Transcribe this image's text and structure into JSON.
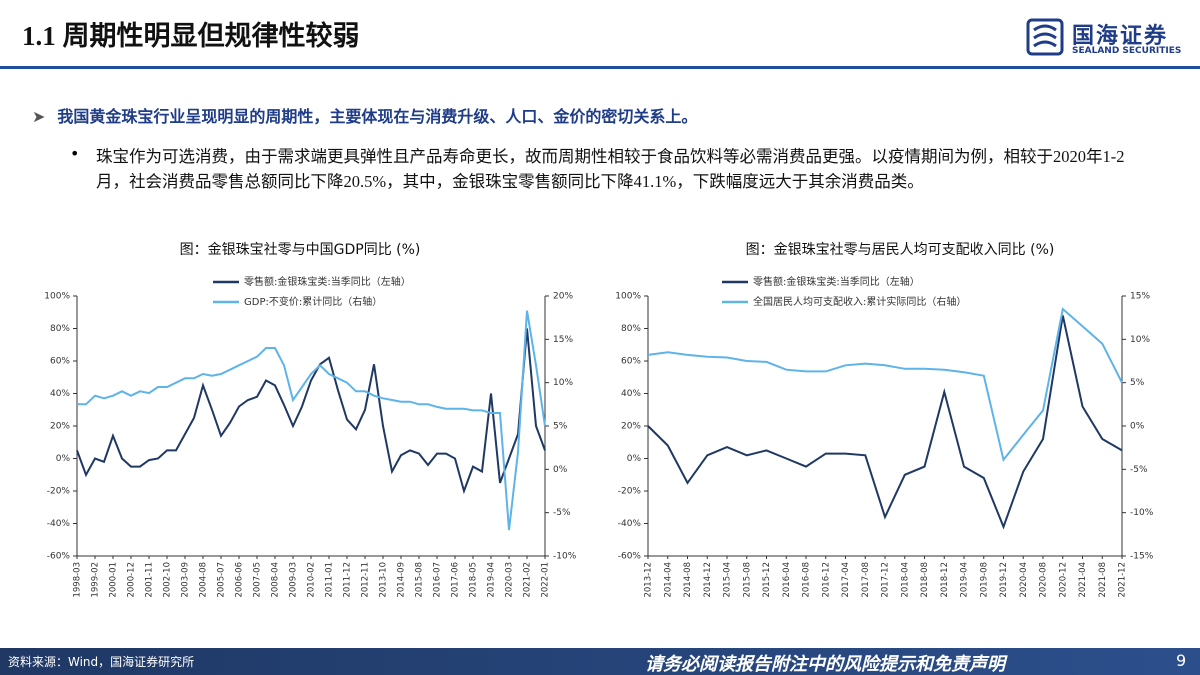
{
  "header": {
    "title": "1.1 周期性明显但规律性较弱",
    "logo": "国海证券",
    "logo_en": "SEALAND SECURITIES"
  },
  "body": {
    "point": "我国黄金珠宝行业呈现明显的周期性，主要体现在与消费升级、人口、金价的密切关系上。",
    "detail": "珠宝作为可选消费，由于需求端更具弹性且产品寿命更长，故而周期性相较于食品饮料等必需消费品更强。以疫情期间为例，相较于2020年1-2月，社会消费品零售总额同比下降20.5%，其中，金银珠宝零售额同比下降41.1%，下跌幅度远大于其余消费品类。"
  },
  "chart_data": [
    {
      "type": "line",
      "title": "图：金银珠宝社零与中国GDP同比 (%)",
      "categories": [
        "1998-03",
        null,
        "1999-02",
        null,
        "2000-01",
        null,
        "2000-12",
        null,
        "2001-11",
        null,
        "2002-10",
        null,
        "2003-09",
        null,
        "2004-08",
        null,
        "2005-07",
        null,
        "2006-06",
        null,
        "2007-05",
        null,
        "2008-04",
        null,
        "2009-03",
        null,
        "2010-02",
        null,
        "2011-01",
        null,
        "2011-12",
        null,
        "2012-11",
        null,
        "2013-10",
        null,
        "2014-09",
        null,
        "2015-08",
        null,
        "2016-07",
        null,
        "2017-06",
        null,
        "2018-05",
        null,
        "2019-04",
        null,
        "2020-03",
        null,
        "2021-02",
        null,
        "2022-01"
      ],
      "series": [
        {
          "name": "零售额:金银珠宝类:当季同比（左轴）",
          "color": "#1f3864",
          "values": [
            5,
            -10,
            0,
            -2,
            14,
            0,
            -5,
            -5,
            -1,
            0,
            5,
            5,
            15,
            25,
            45,
            30,
            14,
            22,
            32,
            36,
            38,
            48,
            45,
            33,
            20,
            32,
            48,
            58,
            62,
            42,
            24,
            18,
            30,
            58,
            20,
            -8,
            2,
            5,
            3,
            -4,
            3,
            3,
            0,
            -20,
            -5,
            -8,
            40,
            -15,
            0,
            15,
            80,
            20,
            5
          ]
        },
        {
          "name": "GDP:不变价:累计同比（右轴）",
          "color": "#5eb3e8",
          "axis": "y2",
          "values": [
            7.5,
            7.5,
            8.5,
            8.2,
            8.5,
            9,
            8.5,
            9,
            8.8,
            9.5,
            9.5,
            10,
            10.5,
            10.5,
            11,
            10.8,
            11,
            11.5,
            12,
            12.5,
            13,
            14,
            14,
            12,
            8,
            9.5,
            11,
            12,
            11,
            10.5,
            10,
            9,
            9,
            8.5,
            8.2,
            8,
            7.8,
            7.8,
            7.5,
            7.5,
            7.2,
            7,
            7,
            7,
            6.8,
            6.8,
            6.5,
            6.5,
            -7,
            2,
            18.3,
            12,
            5
          ]
        }
      ],
      "ylim": [
        -60,
        100
      ],
      "yticks": [
        {
          "value": -60,
          "label": "-60%"
        },
        {
          "value": -40,
          "label": "-40%"
        },
        {
          "value": -20,
          "label": "-20%"
        },
        {
          "value": 0,
          "label": "0%"
        },
        {
          "value": 20,
          "label": "20%"
        },
        {
          "value": 40,
          "label": "40%"
        },
        {
          "value": 60,
          "label": "60%"
        },
        {
          "value": 80,
          "label": "80%"
        },
        {
          "value": 100,
          "label": "100%"
        }
      ],
      "y2lim": [
        -10,
        20
      ],
      "y2ticks": [
        {
          "value": -10,
          "label": "-10%"
        },
        {
          "value": -5,
          "label": "-5%"
        },
        {
          "value": 0,
          "label": "0%"
        },
        {
          "value": 5,
          "label": "5%"
        },
        {
          "value": 10,
          "label": "10%"
        },
        {
          "value": 15,
          "label": "15%"
        },
        {
          "value": 20,
          "label": "20%"
        }
      ]
    },
    {
      "type": "line",
      "title": "图：金银珠宝社零与居民人均可支配收入同比 (%)",
      "categories": [
        "2013-12",
        "2014-04",
        "2014-08",
        "2014-12",
        "2015-04",
        "2015-08",
        "2015-12",
        "2016-04",
        "2016-08",
        "2016-12",
        "2017-04",
        "2017-08",
        "2017-12",
        "2018-04",
        "2018-08",
        "2018-12",
        "2019-04",
        "2019-08",
        "2019-12",
        "2020-04",
        "2020-08",
        "2020-12",
        "2021-04",
        "2021-08",
        "2021-12"
      ],
      "series": [
        {
          "name": "零售额:金银珠宝类:当季同比（左轴）",
          "color": "#1f3864",
          "values": [
            20,
            8,
            -15,
            2,
            7,
            2,
            5,
            0,
            -5,
            3,
            3,
            2,
            -36,
            -10,
            -5,
            41,
            -5,
            -12,
            -42,
            -8,
            12,
            88,
            32,
            12,
            5
          ]
        },
        {
          "name": "全国居民人均可支配收入:累计实际同比（右轴）",
          "color": "#5eb3e8",
          "axis": "y2",
          "values": [
            8.2,
            8.5,
            8.2,
            8,
            7.9,
            7.5,
            7.4,
            6.5,
            6.3,
            6.3,
            7,
            7.2,
            7,
            6.6,
            6.6,
            6.5,
            6.2,
            5.8,
            -3.9,
            -1,
            1.8,
            13.5,
            11.5,
            9.5,
            5
          ]
        }
      ],
      "ylim": [
        -60,
        100
      ],
      "yticks": [
        {
          "value": -60,
          "label": "-60%"
        },
        {
          "value": -40,
          "label": "-40%"
        },
        {
          "value": -20,
          "label": "-20%"
        },
        {
          "value": 0,
          "label": "0%"
        },
        {
          "value": 20,
          "label": "20%"
        },
        {
          "value": 40,
          "label": "40%"
        },
        {
          "value": 60,
          "label": "60%"
        },
        {
          "value": 80,
          "label": "80%"
        },
        {
          "value": 100,
          "label": "100%"
        }
      ],
      "y2lim": [
        -15,
        15
      ],
      "y2ticks": [
        {
          "value": -15,
          "label": "-15%"
        },
        {
          "value": -10,
          "label": "-10%"
        },
        {
          "value": -5,
          "label": "-5%"
        },
        {
          "value": 0,
          "label": "0%"
        },
        {
          "value": 5,
          "label": "5%"
        },
        {
          "value": 10,
          "label": "10%"
        },
        {
          "value": 15,
          "label": "15%"
        }
      ]
    }
  ],
  "footer": {
    "source": "资料来源：Wind，国海证券研究所",
    "disclaimer": "请务必阅读报告附注中的风险提示和免责声明",
    "page": "9"
  }
}
